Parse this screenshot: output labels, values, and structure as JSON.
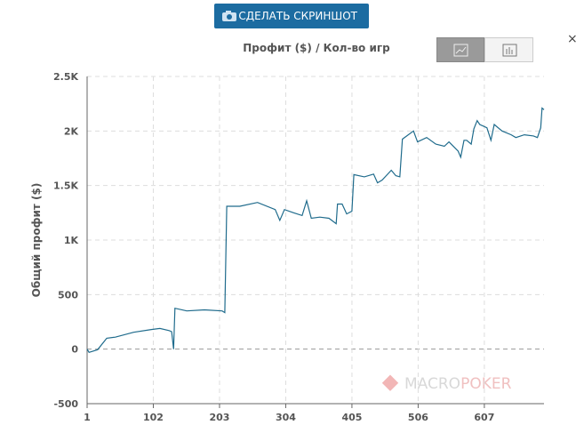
{
  "ui": {
    "button": "СДЕЛАТЬ СКРИНШОТ",
    "close": "×",
    "watermark_a": "MACRO",
    "watermark_b": "POKER"
  },
  "chart_data": {
    "type": "line",
    "title": "Профит ($) / Кол-во игр",
    "y_label": "Общий профит ($)",
    "color": "#1f6b8c",
    "grid": true,
    "xlim": [
      1,
      698
    ],
    "xticks": [
      1,
      102,
      203,
      304,
      405,
      506,
      607
    ],
    "ylim": [
      -500,
      2500
    ],
    "yticks": [
      {
        "value": 2500,
        "label": "2.5K"
      },
      {
        "value": 2000,
        "label": "2K"
      },
      {
        "value": 1500,
        "label": "1.5K"
      },
      {
        "value": 1000,
        "label": "1K"
      },
      500,
      0,
      -500
    ],
    "x": [
      1,
      4,
      17,
      31,
      44,
      72,
      99,
      112,
      126,
      130,
      133,
      135,
      153,
      180,
      207,
      211,
      214,
      234,
      261,
      288,
      295,
      302,
      316,
      329,
      336,
      343,
      356,
      370,
      381,
      383,
      390,
      397,
      405,
      408,
      424,
      438,
      444,
      451,
      465,
      472,
      478,
      482,
      499,
      505,
      519,
      533,
      546,
      553,
      567,
      571,
      576,
      580,
      587,
      591,
      596,
      600,
      611,
      617,
      622,
      634,
      648,
      655,
      668,
      682,
      688,
      693,
      695,
      698
    ],
    "values": [
      0,
      -30,
      -5,
      100,
      110,
      155,
      180,
      190,
      170,
      160,
      0,
      375,
      350,
      360,
      350,
      335,
      1310,
      1310,
      1345,
      1280,
      1180,
      1280,
      1250,
      1225,
      1360,
      1200,
      1210,
      1200,
      1150,
      1330,
      1330,
      1240,
      1265,
      1600,
      1580,
      1605,
      1525,
      1550,
      1640,
      1590,
      1580,
      1925,
      2000,
      1900,
      1940,
      1880,
      1860,
      1900,
      1815,
      1760,
      1915,
      1915,
      1880,
      2020,
      2095,
      2060,
      2030,
      1915,
      2060,
      2000,
      1965,
      1940,
      1965,
      1955,
      1940,
      2030,
      2210,
      2195
    ]
  }
}
